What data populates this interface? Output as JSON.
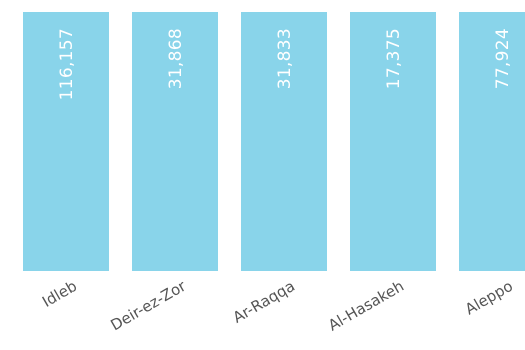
{
  "chart_data": {
    "type": "bar",
    "categories": [
      "Idleb",
      "Deir-ez-Zor",
      "Ar-Raqqa",
      "Al-Hasakeh",
      "Aleppo"
    ],
    "values": [
      116157,
      31868,
      31833,
      17375,
      77924
    ],
    "value_labels": [
      "116,157",
      "31,868",
      "31,833",
      "17,375",
      "77,924"
    ],
    "bar_color": "#89d4ea",
    "label_color": "#ffffff",
    "category_label_color": "#555555",
    "xlabel": "",
    "ylabel": "",
    "grid": false,
    "legend": "none"
  }
}
